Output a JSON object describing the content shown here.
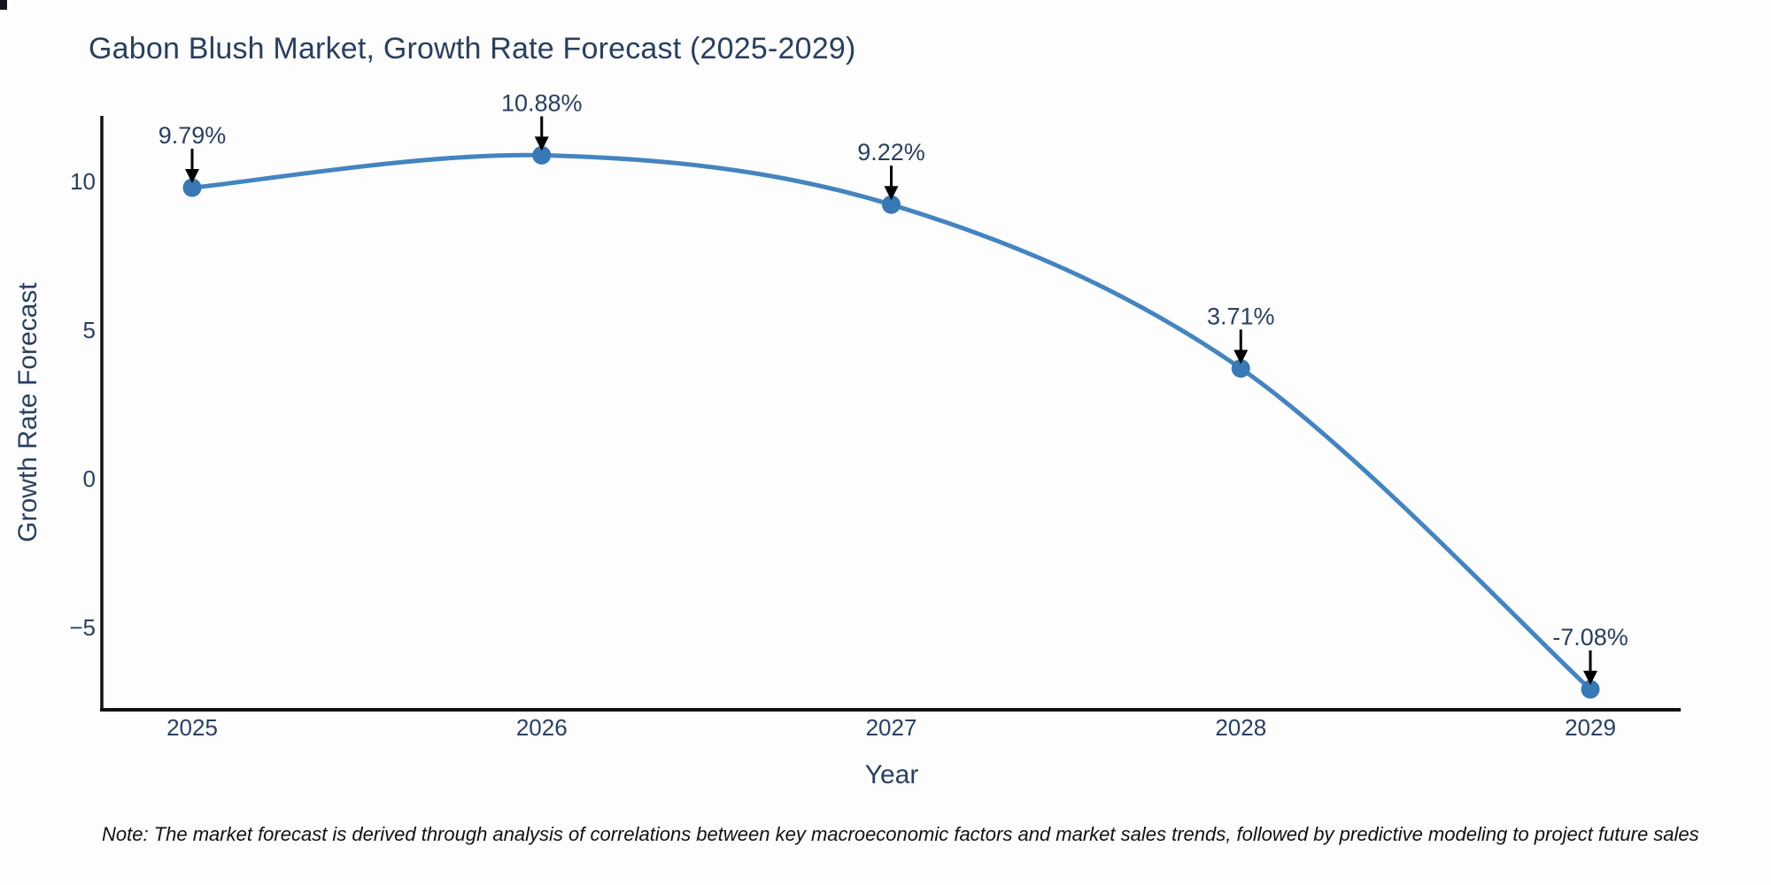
{
  "title": "Gabon Blush Market, Growth Rate Forecast (2025-2029)",
  "note": "Note: The market forecast is derived through analysis of correlations between key macroeconomic factors and market sales trends, followed by predictive modeling to project future sales",
  "chart_data": {
    "type": "line",
    "title": "Gabon Blush Market, Growth Rate Forecast (2025-2029)",
    "xlabel": "Year",
    "ylabel": "Growth Rate Forecast",
    "x": [
      2025,
      2026,
      2027,
      2028,
      2029
    ],
    "series": [
      {
        "name": "Growth Rate Forecast",
        "values": [
          9.79,
          10.88,
          9.22,
          3.71,
          -7.08
        ]
      }
    ],
    "point_labels": [
      "9.79%",
      "10.88%",
      "9.22%",
      "3.71%",
      "-7.08%"
    ],
    "yticks": [
      10,
      5,
      0,
      -5
    ],
    "ylim": [
      -7.7,
      12.2
    ],
    "grid": false,
    "legend": "none",
    "curve": "spline",
    "colors": {
      "line": "#4484bf",
      "marker": "#3878b4",
      "axis": "#111111",
      "text": "#2a3f5f",
      "arrow": "#000000"
    }
  }
}
